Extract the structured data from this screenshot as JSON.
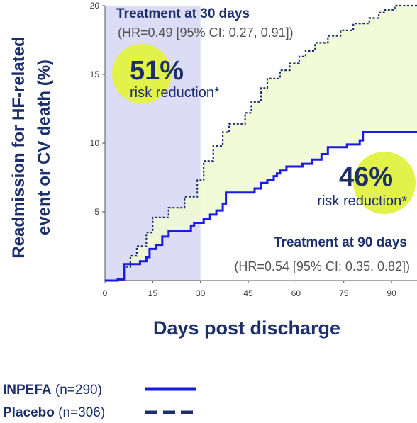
{
  "chart_data": {
    "type": "line",
    "xlabel": "Days post discharge",
    "ylabel_lines": [
      "Readmission for HF-related",
      "event or CV death (%)"
    ],
    "xlim": [
      0,
      98
    ],
    "ylim": [
      0,
      20
    ],
    "xticks": [
      0,
      15,
      30,
      45,
      60,
      75,
      90
    ],
    "yticks": [
      5,
      10,
      15,
      20
    ],
    "shaded_window": {
      "x": [
        0,
        30
      ]
    },
    "series": [
      {
        "name": "INPEFA",
        "style": "solid",
        "color": "#1a1ae6",
        "x": [
          0,
          4,
          6,
          11,
          13,
          14,
          16,
          18,
          20,
          27,
          28,
          31,
          33,
          35,
          37,
          38,
          47,
          49,
          51,
          53,
          54,
          55,
          57,
          62,
          65,
          68,
          70,
          76,
          80,
          81,
          98
        ],
        "y": [
          0,
          0.1,
          1.2,
          1.4,
          1.7,
          2.3,
          2.6,
          3.2,
          3.6,
          4.0,
          4.2,
          4.5,
          4.8,
          5.1,
          5.6,
          6.4,
          6.7,
          7.1,
          7.3,
          7.6,
          7.8,
          8.0,
          8.3,
          8.5,
          8.8,
          9.2,
          9.7,
          9.9,
          10.2,
          10.8,
          10.8
        ]
      },
      {
        "name": "Placebo",
        "style": "dashed",
        "color": "#1b2f6b",
        "x": [
          0,
          4,
          6,
          8,
          10,
          13,
          15,
          20,
          25,
          29,
          31,
          34,
          37,
          39,
          44,
          46,
          49,
          51,
          55,
          58,
          61,
          63,
          66,
          70,
          74,
          78,
          83,
          86,
          88,
          91,
          98
        ],
        "y": [
          0,
          0.1,
          1.0,
          1.8,
          2.5,
          3.5,
          4.6,
          5.3,
          6.1,
          7.3,
          8.7,
          9.8,
          10.8,
          11.4,
          12.2,
          13.0,
          14.0,
          14.7,
          15.3,
          15.8,
          16.3,
          16.7,
          17.3,
          17.8,
          18.2,
          18.7,
          19.1,
          19.5,
          19.7,
          20.0,
          20.0
        ]
      }
    ],
    "annotations": {
      "day30": {
        "title": "Treatment at 30 days",
        "hr": "(HR=0.49 [95% CI: 0.27, 0.91])",
        "pct": "51%",
        "label": "risk reduction*"
      },
      "day90": {
        "title": "Treatment at 90 days",
        "hr": "(HR=0.54 [95% CI: 0.35, 0.82])",
        "pct": "46%",
        "label": "risk reduction*"
      }
    },
    "legend": [
      {
        "name": "INPEFA",
        "n": "(n=290)",
        "style": "solid"
      },
      {
        "name": "Placebo",
        "n": "(n=306)",
        "style": "dashed"
      }
    ],
    "colors": {
      "window_fill": "#dcdcf6",
      "gap_fill": "#f0fad0",
      "circle": "#e2f24a",
      "navy": "#1b2f6b",
      "blue": "#1a1ae6"
    }
  }
}
